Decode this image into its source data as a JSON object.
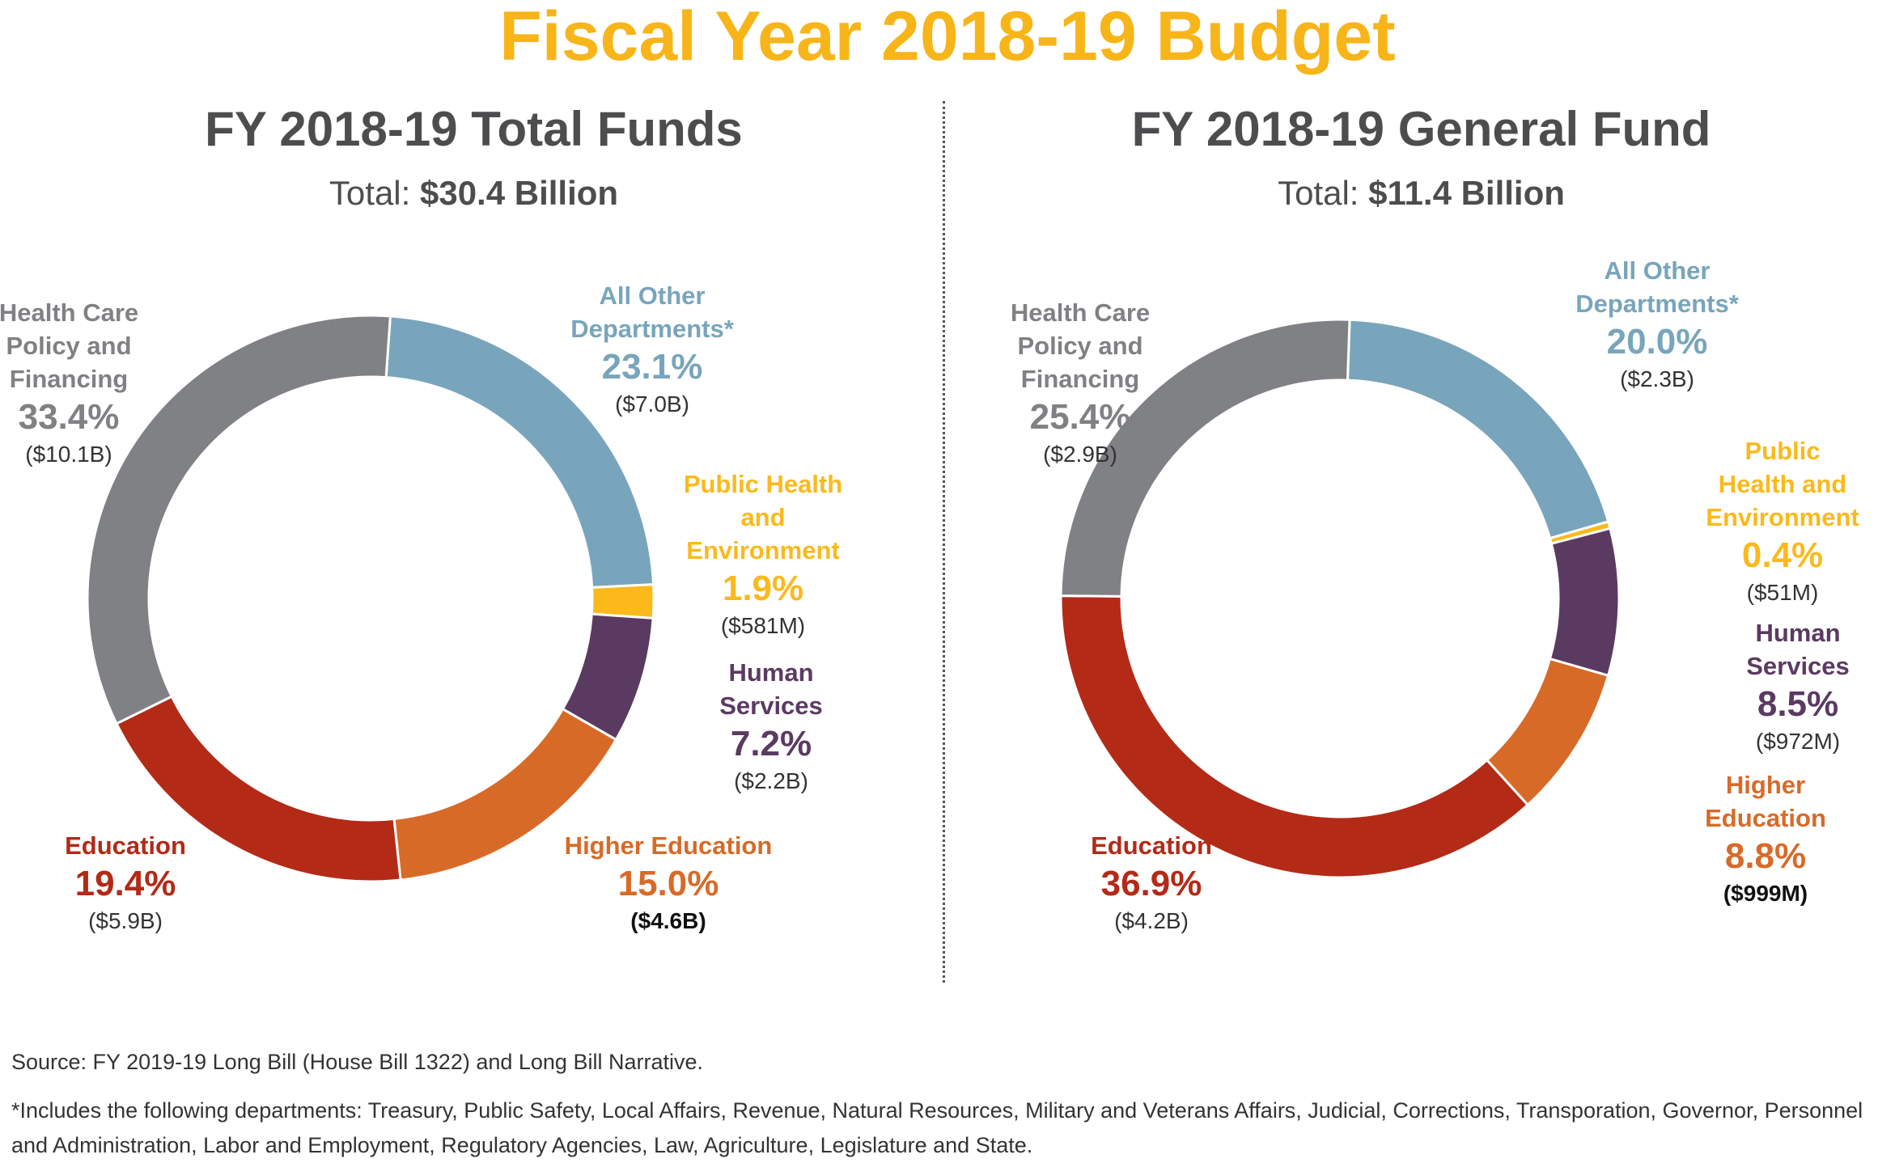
{
  "title": "Fiscal Year 2018-19 Budget",
  "colors": {
    "title": "#f7b519",
    "Health Care Policy and Financing": "#808184",
    "All Other Departments*": "#78a5bb",
    "Public Health and Environment": "#fbb91c",
    "Human Services": "#5b3a62",
    "Higher Education": "#d86a28",
    "Education": "#b32a17"
  },
  "chart_data": [
    {
      "type": "pie",
      "title": "FY 2018-19 Total Funds",
      "total_label": "Total:",
      "total_value": "$30.4 Billion",
      "start_angle_deg": 4,
      "slices": [
        {
          "name": "All Other Departments*",
          "value": 23.1,
          "pct_label": "23.1%",
          "amount": "($7.0B)"
        },
        {
          "name": "Public Health and Environment",
          "value": 1.9,
          "pct_label": "1.9%",
          "amount": "($581M)"
        },
        {
          "name": "Human Services",
          "value": 7.2,
          "pct_label": "7.2%",
          "amount": "($2.2B)"
        },
        {
          "name": "Higher Education",
          "value": 15.0,
          "pct_label": "15.0%",
          "amount": "($4.6B)"
        },
        {
          "name": "Education",
          "value": 19.4,
          "pct_label": "19.4%",
          "amount": "($5.9B)"
        },
        {
          "name": "Health Care Policy and Financing",
          "value": 33.4,
          "pct_label": "33.4%",
          "amount": "($10.1B)"
        }
      ]
    },
    {
      "type": "pie",
      "title": "FY 2018-19 General Fund",
      "total_label": "Total:",
      "total_value": "$11.4 Billion",
      "start_angle_deg": 2,
      "slices": [
        {
          "name": "All Other Departments*",
          "value": 20.0,
          "pct_label": "20.0%",
          "amount": "($2.3B)"
        },
        {
          "name": "Public Health and Environment",
          "value": 0.4,
          "pct_label": "0.4%",
          "amount": "($51M)"
        },
        {
          "name": "Human Services",
          "value": 8.5,
          "pct_label": "8.5%",
          "amount": "($972M)"
        },
        {
          "name": "Higher Education",
          "value": 8.8,
          "pct_label": "8.8%",
          "amount": "($999M)"
        },
        {
          "name": "Education",
          "value": 36.9,
          "pct_label": "36.9%",
          "amount": "($4.2B)"
        },
        {
          "name": "Health Care Policy and Financing",
          "value": 25.4,
          "pct_label": "25.4%",
          "amount": "($2.9B)"
        }
      ]
    }
  ],
  "label_lines": {
    "Health Care Policy and Financing": "Health Care\nPolicy and\nFinancing",
    "All Other Departments*": "All Other\nDepartments*",
    "Public Health and Environment": "Public Health and\nEnvironment",
    "Human Services": "Human Services",
    "Higher Education": "Higher Education",
    "Education": "Education"
  },
  "source": "Source: FY 2019-19 Long Bill (House Bill 1322) and Long Bill Narrative.",
  "footnote": "*Includes the following departments: Treasury, Public Safety, Local Affairs, Revenue, Natural Resources, Military and Veterans Affairs, Judicial, Corrections, Transporation, Governor, Personnel and Administration, Labor and Employment, Regulatory Agencies, Law, Agriculture, Legislature and State."
}
